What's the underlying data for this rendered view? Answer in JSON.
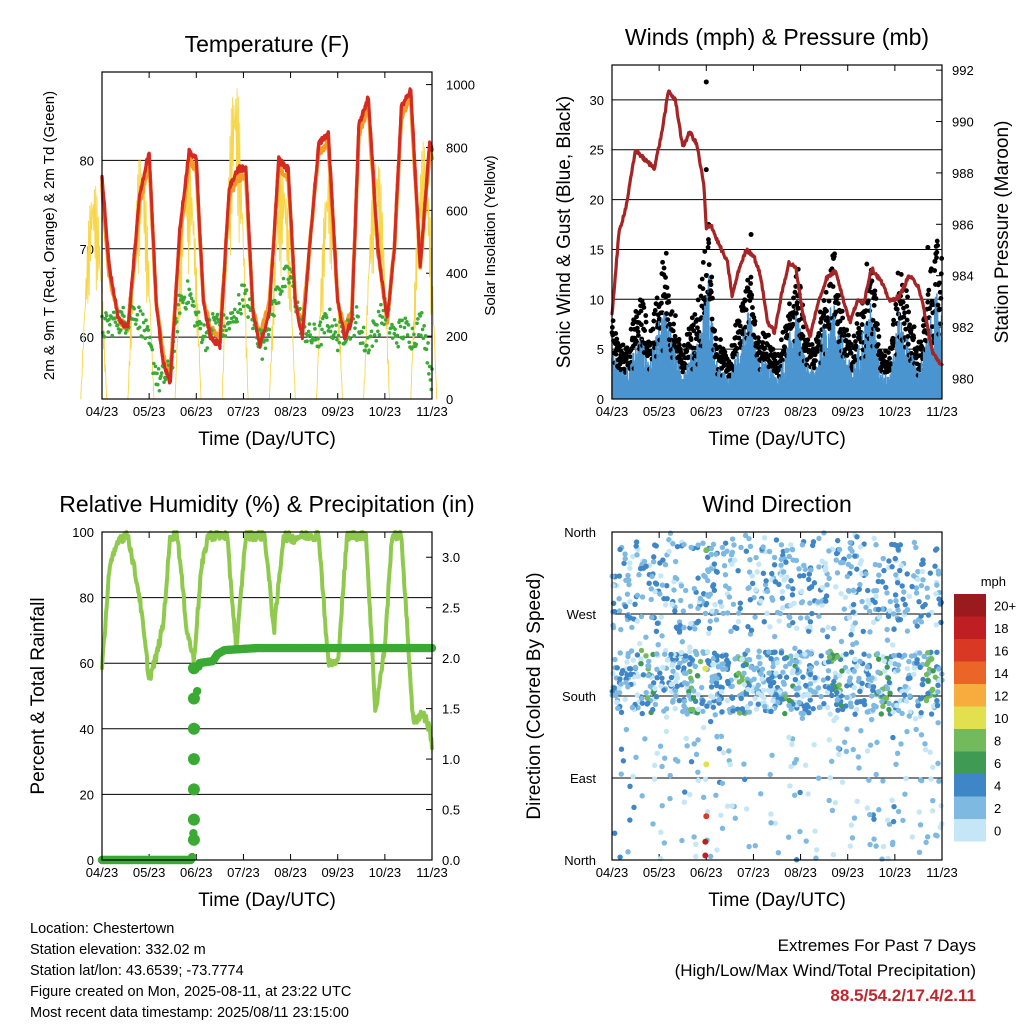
{
  "chart_data": [
    {
      "type": "line",
      "title": "Temperature (F)",
      "xlabel": "Time (Day/UTC)",
      "ylabel": "2m & 9m T (Red, Orange) & 2m Td (Green)",
      "y2label": "Solar Insolation (Yellow)",
      "x_ticks": [
        "04/23",
        "05/23",
        "06/23",
        "07/23",
        "08/23",
        "09/23",
        "10/23",
        "11/23"
      ],
      "xlim": [
        4,
        11
      ],
      "y_ticks": [
        "60",
        "70",
        "80"
      ],
      "ylim": [
        53,
        90
      ],
      "y2_ticks": [
        "0",
        "200",
        "400",
        "600",
        "800",
        "1000"
      ],
      "y2lim": [
        0,
        1040
      ],
      "series": [
        {
          "name": "2m T",
          "color": "#d42a20",
          "x": [
            4.0,
            4.15,
            4.35,
            4.55,
            4.8,
            5.0,
            5.15,
            5.3,
            5.45,
            5.65,
            5.85,
            6.0,
            6.15,
            6.3,
            6.5,
            6.7,
            6.9,
            7.05,
            7.2,
            7.35,
            7.55,
            7.75,
            7.95,
            8.1,
            8.25,
            8.4,
            8.6,
            8.8,
            9.0,
            9.15,
            9.3,
            9.45,
            9.65,
            9.85,
            10.05,
            10.2,
            10.35,
            10.55,
            10.75,
            10.95,
            11.0
          ],
          "y": [
            78,
            68,
            62,
            61,
            76,
            81,
            64,
            57,
            55,
            72,
            81,
            80,
            64,
            60,
            59,
            77,
            79,
            79,
            63,
            59,
            63,
            80,
            79,
            64,
            60,
            70,
            82,
            83,
            64,
            60,
            62,
            84,
            87,
            70,
            62,
            70,
            86,
            88,
            68,
            82,
            81
          ]
        },
        {
          "name": "9m T",
          "color": "#f59a2a",
          "x": [
            4.0,
            4.15,
            4.35,
            4.55,
            4.8,
            5.0,
            5.15,
            5.3,
            5.45,
            5.65,
            5.85,
            6.0,
            6.15,
            6.3,
            6.5,
            6.7,
            6.9,
            7.05,
            7.2,
            7.35,
            7.55,
            7.75,
            7.95,
            8.1,
            8.25,
            8.4,
            8.6,
            8.8,
            9.0,
            9.15,
            9.3,
            9.45,
            9.65,
            9.85,
            10.05,
            10.2,
            10.35,
            10.55,
            10.75,
            10.95,
            11.0
          ],
          "y": [
            77,
            67,
            62,
            61,
            75,
            80,
            64,
            58,
            56,
            71,
            80,
            79,
            64,
            61,
            60,
            76,
            78,
            78,
            63,
            60,
            64,
            79,
            78,
            64,
            61,
            70,
            81,
            82,
            64,
            61,
            63,
            83,
            86,
            70,
            62,
            70,
            85,
            87,
            68,
            81,
            80
          ]
        },
        {
          "name": "2m Td",
          "color": "#3aaa35",
          "x": [
            4.0,
            4.3,
            4.5,
            4.7,
            4.9,
            5.05,
            5.2,
            5.45,
            5.65,
            5.85,
            6.0,
            6.2,
            6.4,
            6.6,
            6.8,
            7.0,
            7.2,
            7.4,
            7.6,
            7.8,
            8.0,
            8.2,
            8.4,
            8.6,
            8.8,
            9.0,
            9.2,
            9.4,
            9.6,
            9.8,
            10.0,
            10.2,
            10.4,
            10.6,
            10.8,
            11.0
          ],
          "y": [
            61,
            62,
            62,
            63,
            61,
            58,
            55,
            56,
            64,
            65,
            62,
            60,
            62,
            61,
            62,
            65,
            62,
            59,
            63,
            66,
            67,
            62,
            60,
            60,
            62,
            60,
            61,
            62,
            59,
            61,
            63,
            60,
            61,
            60,
            62,
            55
          ]
        }
      ],
      "insolation": {
        "name": "Solar Insolation",
        "color": "#f7d64a",
        "day_peaks": [
          700,
          780,
          800,
          1040,
          760,
          760,
          800,
          820
        ]
      }
    },
    {
      "type": "scatter",
      "title": "Winds (mph) & Pressure (mb)",
      "xlabel": "Time (Day/UTC)",
      "ylabel": "Sonic Wind & Gust (Blue, Black)",
      "y2label": "Station Pressure (Maroon)",
      "x_ticks": [
        "04/23",
        "05/23",
        "06/23",
        "07/23",
        "08/23",
        "09/23",
        "10/23",
        "11/23"
      ],
      "xlim": [
        4,
        11
      ],
      "y_ticks": [
        "0",
        "5",
        "10",
        "15",
        "20",
        "25",
        "30"
      ],
      "ylim": [
        0,
        33.5
      ],
      "y2_ticks": [
        "980",
        "982",
        "984",
        "986",
        "988",
        "990",
        "992"
      ],
      "y2lim": [
        979.2,
        992.2
      ],
      "series": [
        {
          "name": "Station Pressure",
          "color": "#a52426",
          "type": "line",
          "x": [
            4.0,
            4.15,
            4.3,
            4.5,
            4.7,
            4.9,
            5.05,
            5.2,
            5.35,
            5.5,
            5.65,
            5.8,
            5.95,
            6.0,
            6.1,
            6.2,
            6.3,
            6.45,
            6.55,
            6.7,
            6.85,
            7.0,
            7.15,
            7.3,
            7.45,
            7.6,
            7.75,
            7.9,
            8.05,
            8.2,
            8.35,
            8.55,
            8.75,
            8.9,
            9.05,
            9.2,
            9.35,
            9.5,
            9.7,
            9.9,
            10.1,
            10.3,
            10.5,
            10.65,
            10.8,
            11.0
          ],
          "y": [
            982.5,
            985.7,
            986.7,
            988.9,
            988.5,
            988.2,
            989.5,
            991.2,
            990.8,
            989.0,
            989.6,
            989.1,
            987.5,
            985.8,
            986.0,
            985.5,
            985.1,
            984.5,
            983.2,
            984.3,
            985.0,
            984.8,
            984.0,
            982.2,
            981.8,
            983.3,
            984.5,
            984.3,
            982.5,
            981.6,
            982.8,
            983.9,
            984.2,
            983.1,
            982.2,
            983.0,
            983.0,
            984.3,
            983.8,
            983.0,
            983.2,
            984.0,
            983.6,
            982.4,
            981.0,
            980.5
          ]
        },
        {
          "name": "Sonic Wind",
          "color": "#4b95d0",
          "type": "scatter"
        },
        {
          "name": "Gust",
          "color": "#000000",
          "type": "scatter"
        }
      ]
    },
    {
      "type": "line",
      "title": "Relative Humidity (%) & Precipitation (in)",
      "xlabel": "Time (Day/UTC)",
      "ylabel": "Percent & Total Rainfall",
      "x_ticks": [
        "04/23",
        "05/23",
        "06/23",
        "07/23",
        "08/23",
        "09/23",
        "10/23",
        "11/23"
      ],
      "xlim": [
        4,
        11
      ],
      "y_ticks": [
        "0",
        "20",
        "40",
        "60",
        "80",
        "100"
      ],
      "ylim": [
        0,
        100
      ],
      "y2_ticks": [
        "0.0",
        "0.5",
        "1.0",
        "1.5",
        "2.0",
        "2.5",
        "3.0"
      ],
      "y2lim": [
        0,
        3.25
      ],
      "series": [
        {
          "name": "Relative Humidity",
          "color": "#8fca4f",
          "x": [
            4.0,
            4.15,
            4.35,
            4.55,
            4.8,
            5.0,
            5.15,
            5.3,
            5.45,
            5.6,
            5.8,
            5.95,
            6.1,
            6.25,
            6.45,
            6.65,
            6.85,
            7.05,
            7.25,
            7.45,
            7.65,
            7.85,
            8.05,
            8.25,
            8.4,
            8.6,
            8.8,
            9.0,
            9.2,
            9.35,
            9.6,
            9.8,
            10.0,
            10.15,
            10.35,
            10.6,
            10.8,
            10.95,
            11.0
          ],
          "y": [
            58,
            88,
            98,
            99,
            80,
            55,
            62,
            72,
            99,
            99,
            70,
            61,
            88,
            99,
            99,
            99,
            64,
            99,
            99,
            99,
            70,
            99,
            98,
            99,
            99,
            99,
            60,
            60,
            99,
            99,
            99,
            45,
            65,
            99,
            99,
            42,
            45,
            40,
            35
          ]
        },
        {
          "name": "Total Rainfall",
          "color": "#3aaa35",
          "x": [
            4.0,
            5.9,
            5.92,
            5.95,
            5.98,
            6.0,
            6.05,
            6.35,
            6.45,
            6.6,
            7.3,
            11.0
          ],
          "y": [
            0,
            0,
            0.05,
            0.4,
            1.0,
            1.5,
            1.95,
            1.97,
            2.04,
            2.08,
            2.1,
            2.1
          ]
        }
      ]
    },
    {
      "type": "scatter",
      "title": "Wind Direction",
      "xlabel": "Time (Day/UTC)",
      "ylabel": "Direction (Colored By Speed)",
      "x_ticks": [
        "04/23",
        "05/23",
        "06/23",
        "07/23",
        "08/23",
        "09/23",
        "10/23",
        "11/23"
      ],
      "xlim": [
        4,
        11
      ],
      "y_ticks": [
        "North",
        "East",
        "South",
        "West",
        "North"
      ],
      "ylim": [
        0,
        360
      ],
      "colorbar": {
        "title": "mph",
        "labels": [
          "0",
          "2",
          "4",
          "6",
          "8",
          "10",
          "12",
          "14",
          "16",
          "18",
          "20+"
        ],
        "colors": [
          "#c4e6f7",
          "#7eb9e2",
          "#3f86c6",
          "#3f9a54",
          "#72ba5c",
          "#e3e04f",
          "#f6ad3d",
          "#ec6528",
          "#d93824",
          "#bf1f22",
          "#9b1a1d"
        ]
      }
    }
  ],
  "info": {
    "location": "Location: Chestertown",
    "elevation": "Station elevation: 332.02 m",
    "latlon": "Station lat/lon: 43.6539; -73.7774",
    "created": "Figure created on Mon, 2025-08-11, at 23:22 UTC",
    "recent": "Most recent data timestamp: 2025/08/11 23:15:00"
  },
  "extremes": {
    "title": "Extremes For Past 7 Days",
    "subtitle": "(High/Low/Max Wind/Total Precipitation)",
    "values": "88.5/54.2/17.4/2.11"
  }
}
